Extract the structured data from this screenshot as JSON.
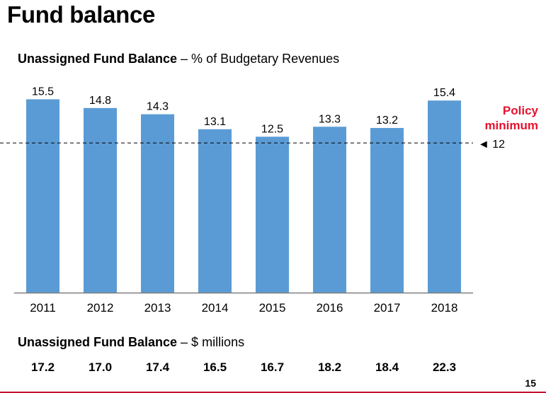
{
  "header": {
    "title": "Fund balance"
  },
  "subtitle": {
    "bold": "Unassigned Fund Balance",
    "rest": " – % of Budgetary Revenues"
  },
  "policy": {
    "line1": "Policy",
    "line2": "minimum",
    "value_label": "◄ 12"
  },
  "dollars": {
    "subtitle_bold": "Unassigned Fund Balance",
    "subtitle_rest": " – $ millions",
    "values": [
      "17.2",
      "17.0",
      "17.4",
      "16.5",
      "16.7",
      "18.2",
      "18.4",
      "22.3"
    ]
  },
  "page_number": "15",
  "colors": {
    "bar": "#5b9bd5",
    "policy": "#e8112d",
    "axis": "#7f7f7f"
  },
  "chart_data": {
    "type": "bar",
    "title": "",
    "xlabel": "",
    "ylabel": "",
    "categories": [
      "2011",
      "2012",
      "2013",
      "2014",
      "2015",
      "2016",
      "2017",
      "2018"
    ],
    "values": [
      15.5,
      14.8,
      14.3,
      13.1,
      12.5,
      13.3,
      13.2,
      15.4
    ],
    "value_labels": [
      "15.5",
      "14.8",
      "14.3",
      "13.1",
      "12.5",
      "13.3",
      "13.2",
      "15.4"
    ],
    "ylim": [
      0,
      17
    ],
    "reference_line": {
      "value": 12,
      "style": "dashed"
    },
    "grid": false,
    "legend": "none"
  }
}
